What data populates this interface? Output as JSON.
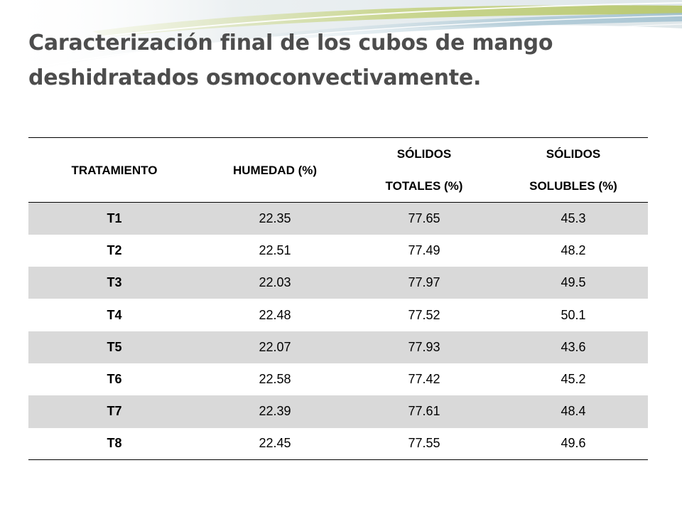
{
  "slide": {
    "title": "Caracterización final de los cubos de mango deshidratados osmoconvectivamente."
  },
  "table": {
    "headers": {
      "treatment": "TRATAMIENTO",
      "moisture": "HUMEDAD (%)",
      "total_solids_line1": "SÓLIDOS",
      "total_solids_line2": "TOTALES (%)",
      "soluble_solids_line1": "SÓLIDOS",
      "soluble_solids_line2": "SOLUBLES (%)"
    },
    "rows": [
      {
        "treatment": "T1",
        "moisture": "22.35",
        "total_solids": "77.65",
        "soluble_solids": "45.3"
      },
      {
        "treatment": "T2",
        "moisture": "22.51",
        "total_solids": "77.49",
        "soluble_solids": "48.2"
      },
      {
        "treatment": "T3",
        "moisture": "22.03",
        "total_solids": "77.97",
        "soluble_solids": "49.5"
      },
      {
        "treatment": "T4",
        "moisture": "22.48",
        "total_solids": "77.52",
        "soluble_solids": "50.1"
      },
      {
        "treatment": "T5",
        "moisture": "22.07",
        "total_solids": "77.93",
        "soluble_solids": "43.6"
      },
      {
        "treatment": "T6",
        "moisture": "22.58",
        "total_solids": "77.42",
        "soluble_solids": "45.2"
      },
      {
        "treatment": "T7",
        "moisture": "22.39",
        "total_solids": "77.61",
        "soluble_solids": "48.4"
      },
      {
        "treatment": "T8",
        "moisture": "22.45",
        "total_solids": "77.55",
        "soluble_solids": "49.6"
      }
    ]
  },
  "colors": {
    "title": "#4d4d4d",
    "shaded_row": "#d9d9d9",
    "swoosh_green": "#c7d488",
    "swoosh_blue": "#a9c6d4"
  }
}
